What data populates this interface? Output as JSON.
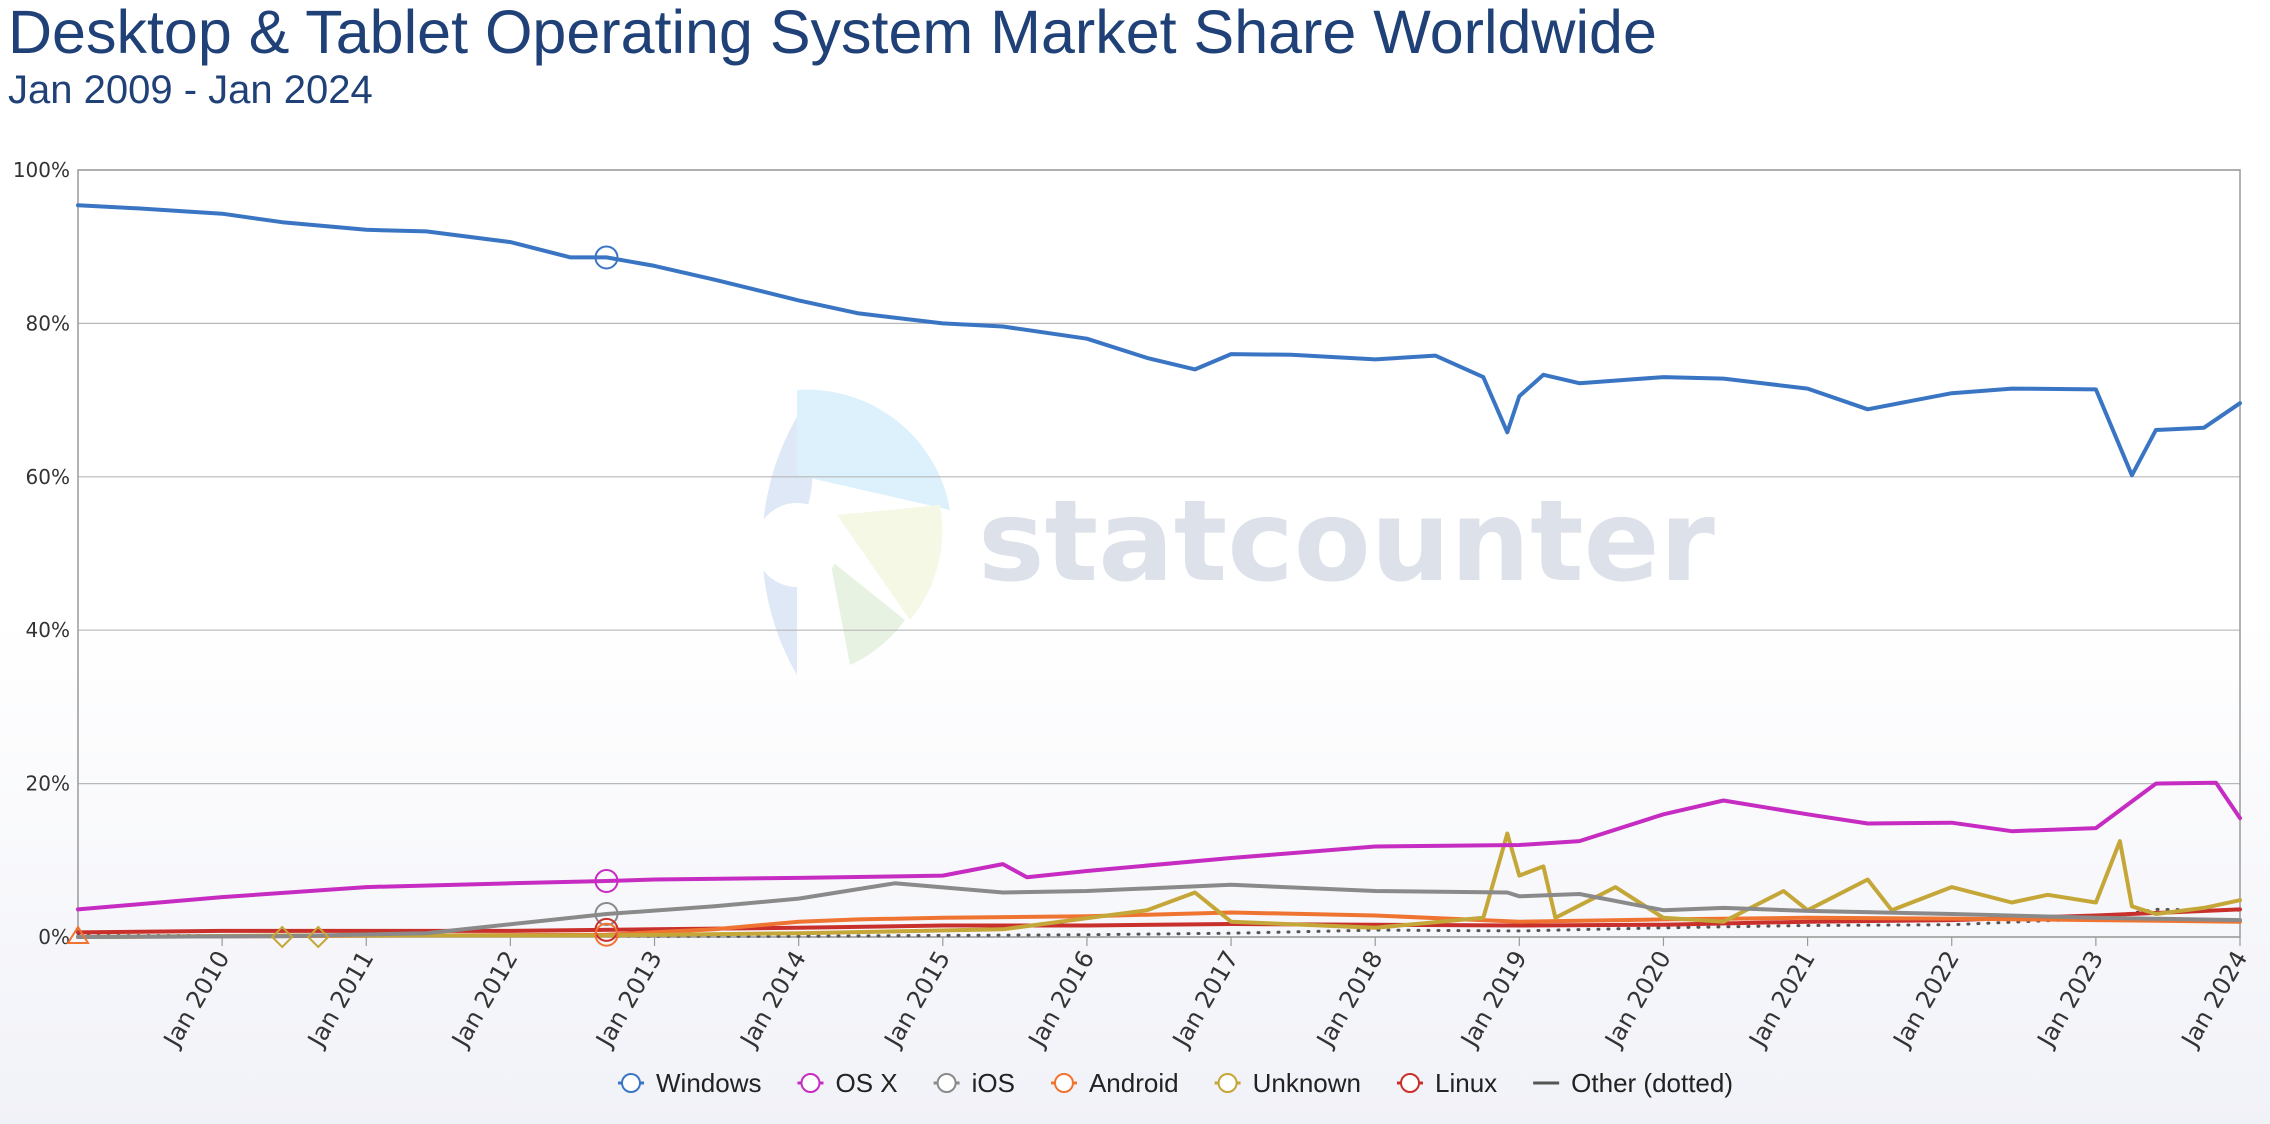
{
  "title": "Desktop & Tablet Operating System Market Share Worldwide",
  "subtitle": "Jan 2009 - Jan 2024",
  "watermark": "statcounter",
  "chart_data": {
    "type": "line",
    "title": "Desktop & Tablet Operating System Market Share Worldwide",
    "subtitle": "Jan 2009 - Jan 2024",
    "x_range": [
      "2009-01",
      "2024-01"
    ],
    "ylim": [
      0,
      100
    ],
    "y_ticks": [
      "0%",
      "20%",
      "40%",
      "60%",
      "80%",
      "100%"
    ],
    "x_ticks": [
      "Jan 2010",
      "Jan 2011",
      "Jan 2012",
      "Jan 2013",
      "Jan 2014",
      "Jan 2015",
      "Jan 2016",
      "Jan 2017",
      "Jan 2018",
      "Jan 2019",
      "Jan 2020",
      "Jan 2021",
      "Jan 2022",
      "Jan 2023",
      "Jan 2024"
    ],
    "grid": true,
    "legend_position": "bottom",
    "series": [
      {
        "name": "Windows",
        "color": "#3a75c4",
        "style": "solid",
        "marker": "circle",
        "points": [
          [
            "2009-01",
            95.4
          ],
          [
            "2009-06",
            95.0
          ],
          [
            "2010-01",
            94.3
          ],
          [
            "2010-06",
            93.2
          ],
          [
            "2011-01",
            92.2
          ],
          [
            "2011-06",
            92.0
          ],
          [
            "2012-01",
            90.6
          ],
          [
            "2012-06",
            88.6
          ],
          [
            "2012-09",
            88.6
          ],
          [
            "2013-01",
            87.5
          ],
          [
            "2013-06",
            85.7
          ],
          [
            "2014-01",
            83.0
          ],
          [
            "2014-06",
            81.3
          ],
          [
            "2015-01",
            80.0
          ],
          [
            "2015-06",
            79.6
          ],
          [
            "2016-01",
            78.0
          ],
          [
            "2016-06",
            75.5
          ],
          [
            "2016-10",
            74.0
          ],
          [
            "2017-01",
            76.0
          ],
          [
            "2017-06",
            75.9
          ],
          [
            "2018-01",
            75.3
          ],
          [
            "2018-06",
            75.8
          ],
          [
            "2018-10",
            73.0
          ],
          [
            "2018-12",
            65.8
          ],
          [
            "2019-01",
            70.5
          ],
          [
            "2019-03",
            73.3
          ],
          [
            "2019-06",
            72.2
          ],
          [
            "2020-01",
            73.0
          ],
          [
            "2020-06",
            72.8
          ],
          [
            "2021-01",
            71.5
          ],
          [
            "2021-06",
            68.8
          ],
          [
            "2022-01",
            70.9
          ],
          [
            "2022-06",
            71.5
          ],
          [
            "2023-01",
            71.4
          ],
          [
            "2023-04",
            60.2
          ],
          [
            "2023-06",
            66.1
          ],
          [
            "2023-10",
            66.4
          ],
          [
            "2024-01",
            69.6
          ]
        ]
      },
      {
        "name": "OS X",
        "color": "#c62cc2",
        "style": "solid",
        "marker": "circle",
        "points": [
          [
            "2009-01",
            3.6
          ],
          [
            "2010-01",
            5.2
          ],
          [
            "2011-01",
            6.5
          ],
          [
            "2012-01",
            7.0
          ],
          [
            "2012-09",
            7.3
          ],
          [
            "2013-01",
            7.5
          ],
          [
            "2014-01",
            7.7
          ],
          [
            "2015-01",
            8.0
          ],
          [
            "2015-06",
            9.5
          ],
          [
            "2015-08",
            7.8
          ],
          [
            "2016-01",
            8.6
          ],
          [
            "2017-01",
            10.3
          ],
          [
            "2018-01",
            11.8
          ],
          [
            "2019-01",
            12.0
          ],
          [
            "2019-06",
            12.5
          ],
          [
            "2020-01",
            16.0
          ],
          [
            "2020-06",
            17.8
          ],
          [
            "2021-01",
            16.0
          ],
          [
            "2021-06",
            14.8
          ],
          [
            "2022-01",
            14.9
          ],
          [
            "2022-06",
            13.8
          ],
          [
            "2023-01",
            14.2
          ],
          [
            "2023-06",
            20.0
          ],
          [
            "2023-11",
            20.1
          ],
          [
            "2024-01",
            15.5
          ]
        ]
      },
      {
        "name": "iOS",
        "color": "#8a8a8a",
        "style": "solid",
        "marker": "circle",
        "points": [
          [
            "2009-01",
            0.0
          ],
          [
            "2010-06",
            0.1
          ],
          [
            "2011-06",
            0.5
          ],
          [
            "2012-09",
            3.0
          ],
          [
            "2013-06",
            4.0
          ],
          [
            "2014-01",
            5.0
          ],
          [
            "2014-09",
            7.0
          ],
          [
            "2015-06",
            5.8
          ],
          [
            "2016-01",
            6.0
          ],
          [
            "2017-01",
            6.8
          ],
          [
            "2018-01",
            6.0
          ],
          [
            "2018-12",
            5.8
          ],
          [
            "2019-01",
            5.3
          ],
          [
            "2019-06",
            5.6
          ],
          [
            "2020-01",
            3.5
          ],
          [
            "2020-06",
            3.8
          ],
          [
            "2021-01",
            3.4
          ],
          [
            "2022-01",
            3.0
          ],
          [
            "2023-01",
            2.5
          ],
          [
            "2024-01",
            2.2
          ]
        ]
      },
      {
        "name": "Android",
        "color": "#f07431",
        "style": "solid",
        "marker": "circle",
        "points": [
          [
            "2009-01",
            0.0
          ],
          [
            "2012-09",
            0.3
          ],
          [
            "2013-06",
            1.0
          ],
          [
            "2014-01",
            2.0
          ],
          [
            "2014-06",
            2.3
          ],
          [
            "2015-01",
            2.5
          ],
          [
            "2016-01",
            2.7
          ],
          [
            "2017-01",
            3.2
          ],
          [
            "2018-01",
            2.8
          ],
          [
            "2019-01",
            2.0
          ],
          [
            "2020-01",
            2.3
          ],
          [
            "2021-01",
            2.5
          ],
          [
            "2022-01",
            2.4
          ],
          [
            "2023-01",
            2.2
          ],
          [
            "2024-01",
            2.0
          ]
        ]
      },
      {
        "name": "Unknown",
        "color": "#c4a738",
        "style": "solid",
        "marker": "circle",
        "points": [
          [
            "2009-01",
            0.0
          ],
          [
            "2010-06",
            0.2
          ],
          [
            "2012-09",
            0.2
          ],
          [
            "2014-01",
            0.5
          ],
          [
            "2015-06",
            1.0
          ],
          [
            "2016-06",
            3.5
          ],
          [
            "2016-10",
            5.8
          ],
          [
            "2017-01",
            2.0
          ],
          [
            "2018-01",
            1.2
          ],
          [
            "2018-10",
            2.5
          ],
          [
            "2018-12",
            13.5
          ],
          [
            "2019-01",
            8.0
          ],
          [
            "2019-03",
            9.2
          ],
          [
            "2019-04",
            2.5
          ],
          [
            "2019-09",
            6.5
          ],
          [
            "2020-01",
            2.5
          ],
          [
            "2020-06",
            2.0
          ],
          [
            "2020-11",
            6.0
          ],
          [
            "2021-01",
            3.5
          ],
          [
            "2021-06",
            7.5
          ],
          [
            "2021-08",
            3.5
          ],
          [
            "2022-01",
            6.5
          ],
          [
            "2022-06",
            4.5
          ],
          [
            "2022-09",
            5.5
          ],
          [
            "2023-01",
            4.5
          ],
          [
            "2023-03",
            12.5
          ],
          [
            "2023-04",
            4.0
          ],
          [
            "2023-06",
            3.0
          ],
          [
            "2023-10",
            3.8
          ],
          [
            "2024-01",
            4.8
          ]
        ]
      },
      {
        "name": "Linux",
        "color": "#c9302c",
        "style": "solid",
        "marker": "circle",
        "points": [
          [
            "2009-01",
            0.6
          ],
          [
            "2010-01",
            0.8
          ],
          [
            "2011-01",
            0.8
          ],
          [
            "2012-01",
            0.8
          ],
          [
            "2013-01",
            1.0
          ],
          [
            "2014-01",
            1.2
          ],
          [
            "2015-01",
            1.5
          ],
          [
            "2016-01",
            1.5
          ],
          [
            "2017-01",
            1.7
          ],
          [
            "2018-01",
            1.6
          ],
          [
            "2019-01",
            1.5
          ],
          [
            "2020-01",
            1.6
          ],
          [
            "2021-01",
            2.0
          ],
          [
            "2022-01",
            2.2
          ],
          [
            "2023-01",
            2.8
          ],
          [
            "2024-01",
            3.6
          ]
        ]
      },
      {
        "name": "Other (dotted)",
        "color": "#555555",
        "style": "dotted",
        "marker": "line",
        "points": [
          [
            "2009-01",
            0.2
          ],
          [
            "2011-01",
            0.2
          ],
          [
            "2013-01",
            0.1
          ],
          [
            "2014-01",
            0.1
          ],
          [
            "2016-01",
            0.3
          ],
          [
            "2017-01",
            0.5
          ],
          [
            "2018-01",
            0.9
          ],
          [
            "2019-01",
            0.8
          ],
          [
            "2020-01",
            1.2
          ],
          [
            "2021-01",
            1.5
          ],
          [
            "2022-01",
            1.6
          ],
          [
            "2023-01",
            2.4
          ],
          [
            "2023-06",
            3.6
          ],
          [
            "2024-01",
            3.5
          ]
        ]
      }
    ]
  }
}
